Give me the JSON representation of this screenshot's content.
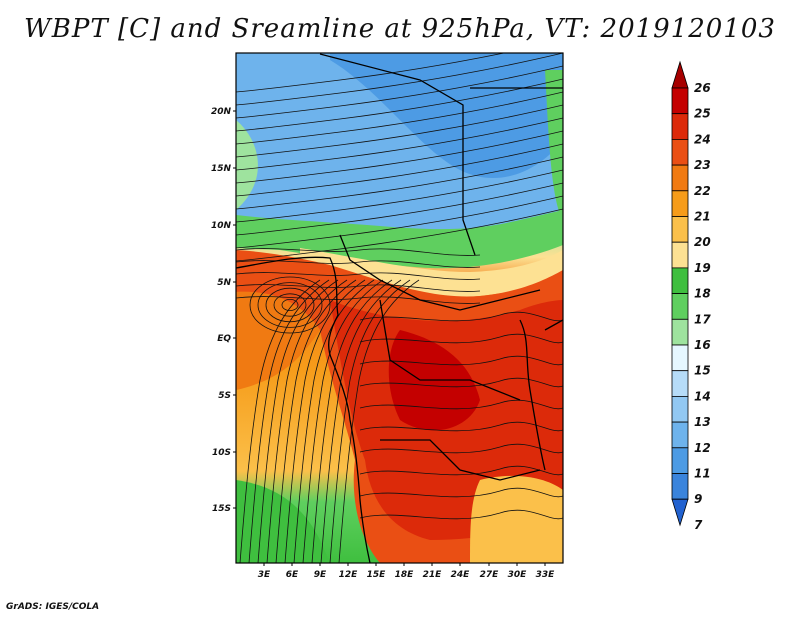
{
  "title": "WBPT [C] and Sreamline at 925hPa, VT: 2019120103",
  "footer": "GrADS: IGES/COLA",
  "map": {
    "variable": "WBPT",
    "unit": "C",
    "level": "925hPa",
    "valid_time": "2019120103",
    "lat_labels": [
      "20N",
      "15N",
      "10N",
      "5N",
      "EQ",
      "5S",
      "10S",
      "15S"
    ],
    "lon_labels": [
      "3E",
      "6E",
      "9E",
      "12E",
      "15E",
      "18E",
      "21E",
      "24E",
      "27E",
      "30E",
      "33E"
    ]
  },
  "colorbar": {
    "labels": [
      "26",
      "25",
      "24",
      "23",
      "22",
      "21",
      "20",
      "19",
      "18",
      "17",
      "16",
      "15",
      "14",
      "13",
      "12",
      "11",
      "9",
      "7"
    ],
    "colors": {
      "26": "#a60000",
      "25": "#c40000",
      "24": "#dc2a0a",
      "23": "#ea4f14",
      "22": "#f07a12",
      "21": "#f69c1a",
      "20": "#fbc04a",
      "19": "#fde193",
      "18": "#3fbf3f",
      "17": "#5fcf5f",
      "16": "#9ee39e",
      "15": "#e6f7ff",
      "14": "#b6dcf8",
      "13": "#92c8f2",
      "12": "#6eb3ec",
      "11": "#4d9be4",
      "9": "#3a84dc",
      "7": "#2262d0"
    }
  }
}
